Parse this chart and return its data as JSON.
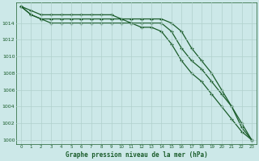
{
  "title": "Graphe pression niveau de la mer (hPa)",
  "background_color": "#cce8e8",
  "grid_color": "#b0d0cc",
  "line_color": "#1a5c2a",
  "xlim": [
    -0.5,
    23.5
  ],
  "ylim": [
    999.5,
    1016.5
  ],
  "yticks": [
    1000,
    1002,
    1004,
    1006,
    1008,
    1010,
    1012,
    1014
  ],
  "xticks": [
    0,
    1,
    2,
    3,
    4,
    5,
    6,
    7,
    8,
    9,
    10,
    11,
    12,
    13,
    14,
    15,
    16,
    17,
    18,
    19,
    20,
    21,
    22,
    23
  ],
  "series": [
    [
      1016,
      1015.5,
      1015,
      1015,
      1015,
      1015,
      1015,
      1015,
      1015,
      1015,
      1014.5,
      1014,
      1013.5,
      1013.5,
      1013,
      1011.5,
      1009.5,
      1008,
      1007,
      1005.5,
      1004,
      1002.5,
      1001,
      1000
    ],
    [
      1016,
      1015,
      1014.5,
      1014,
      1014,
      1014,
      1014,
      1014,
      1014,
      1014,
      1014,
      1014,
      1014,
      1014,
      1014,
      1013,
      1011,
      1009.5,
      1008.5,
      1007,
      1005.5,
      1004,
      1002,
      1000
    ],
    [
      1016,
      1015,
      1014.5,
      1014.5,
      1014.5,
      1014.5,
      1014.5,
      1014.5,
      1014.5,
      1014.5,
      1014.5,
      1014.5,
      1014.5,
      1014.5,
      1014.5,
      1014,
      1013,
      1011,
      1009.5,
      1008,
      1006,
      1004,
      1001.5,
      1000
    ]
  ]
}
